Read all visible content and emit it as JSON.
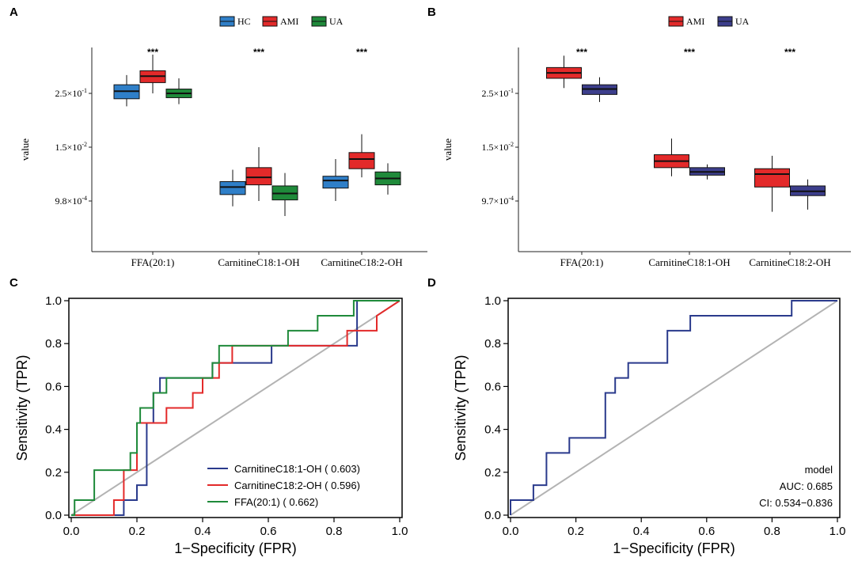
{
  "panels": {
    "A": {
      "letter": "A"
    },
    "B": {
      "letter": "B"
    },
    "C": {
      "letter": "C"
    },
    "D": {
      "letter": "D"
    }
  },
  "chart_data": [
    {
      "id": "A",
      "type": "box",
      "ylabel": "value",
      "scale": "log-like (display units)",
      "yticks": [
        {
          "label_base": "2.5×10",
          "exp": "-1",
          "pos": 1.0
        },
        {
          "label_base": "1.5×10",
          "exp": "-2",
          "pos": 0.5
        },
        {
          "label_base": "9.8×10",
          "exp": "-4",
          "pos": 0.0
        }
      ],
      "categories": [
        "FFA(20:1)",
        "CarnitineC18:1-OH",
        "CarnitineC18:2-OH"
      ],
      "significance": [
        "***",
        "***",
        "***"
      ],
      "legend": [
        {
          "name": "HC",
          "color": "#2f7fc8"
        },
        {
          "name": "AMI",
          "color": "#e32a2a"
        },
        {
          "name": "UA",
          "color": "#1f8a3a"
        }
      ],
      "groups": [
        {
          "category": "FFA(20:1)",
          "boxes": [
            {
              "name": "HC",
              "min": 0.88,
              "q1": 0.95,
              "median": 1.02,
              "q3": 1.08,
              "max": 1.17
            },
            {
              "name": "AMI",
              "min": 1.0,
              "q1": 1.1,
              "median": 1.16,
              "q3": 1.21,
              "max": 1.36
            },
            {
              "name": "UA",
              "min": 0.9,
              "q1": 0.96,
              "median": 1.0,
              "q3": 1.04,
              "max": 1.14
            }
          ]
        },
        {
          "category": "CarnitineC18:1-OH",
          "boxes": [
            {
              "name": "HC",
              "min": -0.05,
              "q1": 0.06,
              "median": 0.13,
              "q3": 0.18,
              "max": 0.29
            },
            {
              "name": "AMI",
              "min": 0.0,
              "q1": 0.15,
              "median": 0.22,
              "q3": 0.31,
              "max": 0.5
            },
            {
              "name": "UA",
              "min": -0.14,
              "q1": 0.01,
              "median": 0.07,
              "q3": 0.14,
              "max": 0.26
            }
          ]
        },
        {
          "category": "CarnitineC18:2-OH",
          "boxes": [
            {
              "name": "HC",
              "min": 0.0,
              "q1": 0.12,
              "median": 0.19,
              "q3": 0.23,
              "max": 0.39
            },
            {
              "name": "AMI",
              "min": 0.22,
              "q1": 0.3,
              "median": 0.39,
              "q3": 0.45,
              "max": 0.62
            },
            {
              "name": "UA",
              "min": 0.06,
              "q1": 0.15,
              "median": 0.21,
              "q3": 0.27,
              "max": 0.35
            }
          ]
        }
      ]
    },
    {
      "id": "B",
      "type": "box",
      "ylabel": "value",
      "yticks": [
        {
          "label_base": "2.5×10",
          "exp": "-1",
          "pos": 1.0
        },
        {
          "label_base": "1.5×10",
          "exp": "-2",
          "pos": 0.5
        },
        {
          "label_base": "9.7×10",
          "exp": "-4",
          "pos": 0.0
        }
      ],
      "categories": [
        "FFA(20:1)",
        "CarnitineC18:1-OH",
        "CarnitineC18:2-OH"
      ],
      "significance": [
        "***",
        "***",
        "***"
      ],
      "legend": [
        {
          "name": "AMI",
          "color": "#e32a2a"
        },
        {
          "name": "UA",
          "color": "#3c3e8c"
        }
      ],
      "groups": [
        {
          "category": "FFA(20:1)",
          "boxes": [
            {
              "name": "AMI",
              "min": 1.05,
              "q1": 1.14,
              "median": 1.19,
              "q3": 1.24,
              "max": 1.35
            },
            {
              "name": "UA",
              "min": 0.92,
              "q1": 0.99,
              "median": 1.04,
              "q3": 1.08,
              "max": 1.15
            }
          ]
        },
        {
          "category": "CarnitineC18:1-OH",
          "boxes": [
            {
              "name": "AMI",
              "min": 0.23,
              "q1": 0.31,
              "median": 0.37,
              "q3": 0.43,
              "max": 0.58
            },
            {
              "name": "UA",
              "min": 0.2,
              "q1": 0.24,
              "median": 0.27,
              "q3": 0.31,
              "max": 0.34
            }
          ]
        },
        {
          "category": "CarnitineC18:2-OH",
          "boxes": [
            {
              "name": "AMI",
              "min": -0.1,
              "q1": 0.13,
              "median": 0.25,
              "q3": 0.3,
              "max": 0.42
            },
            {
              "name": "UA",
              "min": -0.08,
              "q1": 0.05,
              "median": 0.09,
              "q3": 0.14,
              "max": 0.2
            }
          ]
        }
      ]
    },
    {
      "id": "C",
      "type": "line",
      "xlabel": "1−Specificity (FPR)",
      "ylabel": "Sensitivity (TPR)",
      "xlim": [
        0,
        1
      ],
      "ylim": [
        0,
        1
      ],
      "xticks": [
        "0.0",
        "0.2",
        "0.4",
        "0.6",
        "0.8",
        "1.0"
      ],
      "yticks": [
        "0.0",
        "0.2",
        "0.4",
        "0.6",
        "0.8",
        "1.0"
      ],
      "series": [
        {
          "name": "CarnitineC18:1-OH",
          "auc_text": " ( 0.603)",
          "color": "#2a3a8c",
          "x": [
            0,
            0.16,
            0.16,
            0.2,
            0.2,
            0.23,
            0.23,
            0.25,
            0.25,
            0.27,
            0.27,
            0.29,
            0.29,
            0.43,
            0.43,
            0.47,
            0.47,
            0.61,
            0.61,
            0.87,
            0.87,
            1
          ],
          "y": [
            0,
            0,
            0.07,
            0.07,
            0.14,
            0.14,
            0.43,
            0.43,
            0.57,
            0.57,
            0.64,
            0.64,
            0.64,
            0.64,
            0.71,
            0.71,
            0.71,
            0.71,
            0.79,
            0.79,
            1,
            1
          ]
        },
        {
          "name": "CarnitineC18:2-OH",
          "auc_text": " ( 0.596)",
          "color": "#e32a2a",
          "x": [
            0,
            0.13,
            0.13,
            0.16,
            0.16,
            0.2,
            0.2,
            0.21,
            0.21,
            0.29,
            0.29,
            0.33,
            0.33,
            0.37,
            0.37,
            0.4,
            0.4,
            0.43,
            0.43,
            0.45,
            0.45,
            0.47,
            0.47,
            0.49,
            0.49,
            0.84,
            0.84,
            0.93,
            0.93,
            1
          ],
          "y": [
            0,
            0,
            0.07,
            0.07,
            0.21,
            0.21,
            0.43,
            0.43,
            0.43,
            0.43,
            0.5,
            0.5,
            0.5,
            0.5,
            0.57,
            0.57,
            0.64,
            0.64,
            0.64,
            0.64,
            0.71,
            0.71,
            0.71,
            0.71,
            0.79,
            0.79,
            0.86,
            0.86,
            0.93,
            1
          ]
        },
        {
          "name": "FFA(20:1)",
          "auc_text": " ( 0.662)",
          "color": "#1f8a3a",
          "x": [
            0,
            0.01,
            0.01,
            0.07,
            0.07,
            0.18,
            0.18,
            0.2,
            0.2,
            0.21,
            0.21,
            0.25,
            0.25,
            0.29,
            0.29,
            0.31,
            0.31,
            0.43,
            0.43,
            0.45,
            0.45,
            0.66,
            0.66,
            0.75,
            0.75,
            0.86,
            0.86,
            1
          ],
          "y": [
            0,
            0,
            0.07,
            0.07,
            0.21,
            0.21,
            0.29,
            0.29,
            0.43,
            0.43,
            0.5,
            0.5,
            0.57,
            0.57,
            0.64,
            0.64,
            0.64,
            0.64,
            0.71,
            0.71,
            0.79,
            0.79,
            0.86,
            0.86,
            0.93,
            0.93,
            1,
            1
          ]
        }
      ]
    },
    {
      "id": "D",
      "type": "line",
      "xlabel": "1−Specificity (FPR)",
      "ylabel": "Sensitivity (TPR)",
      "xlim": [
        0,
        1
      ],
      "ylim": [
        0,
        1
      ],
      "xticks": [
        "0.0",
        "0.2",
        "0.4",
        "0.6",
        "0.8",
        "1.0"
      ],
      "yticks": [
        "0.0",
        "0.2",
        "0.4",
        "0.6",
        "0.8",
        "1.0"
      ],
      "annotation": [
        "model",
        "AUC: 0.685",
        "CI: 0.534−0.836"
      ],
      "series": [
        {
          "name": "model",
          "color": "#2a3a8c",
          "x": [
            0,
            0,
            0.07,
            0.07,
            0.11,
            0.11,
            0.18,
            0.18,
            0.29,
            0.29,
            0.32,
            0.32,
            0.36,
            0.36,
            0.48,
            0.48,
            0.55,
            0.55,
            0.86,
            0.86,
            1
          ],
          "y": [
            0,
            0.07,
            0.07,
            0.14,
            0.14,
            0.29,
            0.29,
            0.36,
            0.36,
            0.57,
            0.57,
            0.64,
            0.64,
            0.71,
            0.71,
            0.86,
            0.86,
            0.93,
            0.93,
            1,
            1
          ]
        }
      ]
    }
  ]
}
